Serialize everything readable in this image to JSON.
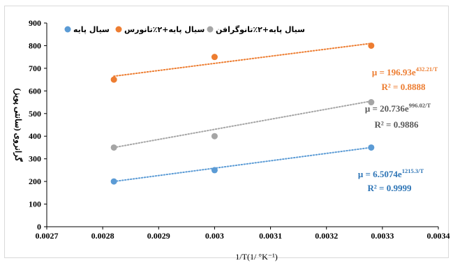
{
  "chart_data": {
    "type": "scatter",
    "x_axis": {
      "label": "1/T(1/ °K⁻¹)",
      "range": [
        0.0027,
        0.0034
      ],
      "ticks": [
        "0.0027",
        "0.0028",
        "0.0029",
        "0.003",
        "0.0031",
        "0.0032",
        "0.0033",
        "0.0034"
      ]
    },
    "y_axis": {
      "label": "گرانروی (سانتی پویز)",
      "range": [
        0,
        900
      ],
      "ticks": [
        "0",
        "100",
        "200",
        "300",
        "400",
        "500",
        "600",
        "700",
        "800",
        "900"
      ]
    },
    "grid": false,
    "legend_position": "top",
    "series": [
      {
        "name": "سیال پایه",
        "color": "#5b9bd5",
        "label_color": "#2e75b6",
        "points": [
          [
            0.00282,
            200
          ],
          [
            0.003,
            250
          ],
          [
            0.00328,
            350
          ]
        ],
        "trendline": [
          [
            0.00282,
            200
          ],
          [
            0.00328,
            350
          ]
        ],
        "equation_base": "μ = 6.5074e",
        "equation_exp": "1215.3/T",
        "r2": "R² = 0.9999"
      },
      {
        "name": "سیال پایه+۲٪تانورس",
        "color": "#ed7d31",
        "label_color": "#ed7d31",
        "points": [
          [
            0.00282,
            650
          ],
          [
            0.003,
            750
          ],
          [
            0.00328,
            800
          ]
        ],
        "trendline": [
          [
            0.00282,
            665
          ],
          [
            0.00328,
            810
          ]
        ],
        "equation_base": "μ = 196.93e",
        "equation_exp": "432.21/T",
        "r2": "R² = 0.8888"
      },
      {
        "name": "سیال پایه+۲٪تانوگرافن",
        "color": "#a5a5a5",
        "label_color": "#595959",
        "points": [
          [
            0.00282,
            350
          ],
          [
            0.003,
            400
          ],
          [
            0.00328,
            550
          ]
        ],
        "trendline": [
          [
            0.00282,
            350
          ],
          [
            0.00328,
            555
          ]
        ],
        "equation_base": "μ = 20.736e",
        "equation_exp": "996.02/T",
        "r2": "R² = 0.9886"
      }
    ]
  }
}
